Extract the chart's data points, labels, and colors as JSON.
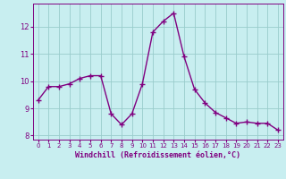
{
  "x": [
    0,
    1,
    2,
    3,
    4,
    5,
    6,
    7,
    8,
    9,
    10,
    11,
    12,
    13,
    14,
    15,
    16,
    17,
    18,
    19,
    20,
    21,
    22,
    23
  ],
  "y": [
    9.3,
    9.8,
    9.8,
    9.9,
    10.1,
    10.2,
    10.2,
    8.8,
    8.4,
    8.8,
    9.9,
    11.8,
    12.2,
    12.5,
    10.9,
    9.7,
    9.2,
    8.85,
    8.65,
    8.45,
    8.5,
    8.45,
    8.45,
    8.2
  ],
  "line_color": "#800080",
  "marker": "+",
  "marker_size": 4,
  "marker_color": "#800080",
  "background_color": "#c8eef0",
  "grid_color": "#99cccc",
  "xlabel": "Windchill (Refroidissement éolien,°C)",
  "xlabel_color": "#800080",
  "tick_color": "#800080",
  "ylim": [
    7.85,
    12.85
  ],
  "yticks": [
    8,
    9,
    10,
    11,
    12
  ],
  "xticks": [
    0,
    1,
    2,
    3,
    4,
    5,
    6,
    7,
    8,
    9,
    10,
    11,
    12,
    13,
    14,
    15,
    16,
    17,
    18,
    19,
    20,
    21,
    22,
    23
  ],
  "line_width": 1.0,
  "xlim": [
    -0.5,
    23.5
  ]
}
